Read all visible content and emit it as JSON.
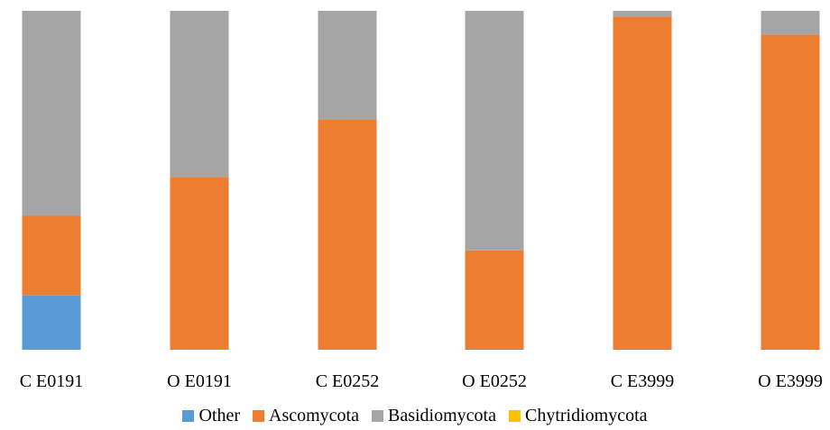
{
  "chart_data": {
    "type": "bar",
    "stacked": true,
    "normalized": true,
    "categories": [
      "C E0191",
      "O E0191",
      "C E0252",
      "O E0252",
      "C E3999",
      "O E3999"
    ],
    "ylim": [
      0,
      1
    ],
    "series": [
      {
        "name": "Other",
        "color": "#5b9bd5",
        "values": [
          0.16,
          0.0,
          0.0,
          0.003,
          0.003,
          0.0
        ]
      },
      {
        "name": "Ascomycota",
        "color": "#ed7d31",
        "values": [
          0.235,
          0.51,
          0.68,
          0.29,
          0.98,
          0.93
        ]
      },
      {
        "name": "Basidiomycota",
        "color": "#a5a5a5",
        "values": [
          0.605,
          0.49,
          0.32,
          0.707,
          0.017,
          0.07
        ]
      },
      {
        "name": "Chytridiomycota",
        "color": "#ffc000",
        "values": [
          0.0,
          0.0,
          0.0,
          0.0,
          0.0,
          0.0
        ]
      }
    ],
    "grid": false,
    "legend_position": "bottom"
  }
}
